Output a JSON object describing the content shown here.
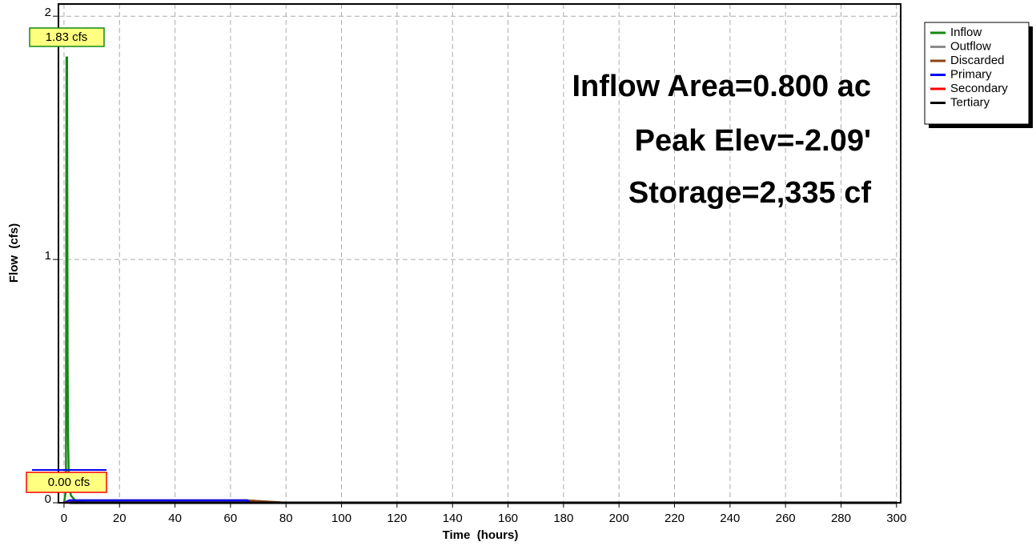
{
  "chart_data": {
    "type": "line",
    "xlabel": "Time  (hours)",
    "ylabel": "Flow  (cfs)",
    "xlim": [
      -2,
      301.5
    ],
    "ylim": [
      0,
      2.05
    ],
    "xticks": [
      0,
      20,
      40,
      60,
      80,
      100,
      120,
      140,
      160,
      180,
      200,
      220,
      240,
      260,
      280,
      300
    ],
    "yticks": [
      0,
      1,
      2
    ],
    "grid": true,
    "series": [
      {
        "name": "Inflow",
        "color": "#138a13",
        "x": [
          0,
          0.7,
          0.9,
          1.1,
          1.3,
          1.5,
          1.7,
          2,
          2.5,
          4,
          8
        ],
        "values": [
          0,
          0.05,
          1.83,
          1.83,
          0.6,
          0.25,
          0.12,
          0.06,
          0.03,
          0.01,
          0
        ]
      },
      {
        "name": "Outflow",
        "color": "#8c8c8c",
        "x": [
          0,
          1,
          2,
          66,
          76,
          80
        ],
        "values": [
          0,
          0.005,
          0.01,
          0.01,
          0.003,
          0
        ]
      },
      {
        "name": "Discarded",
        "color": "#8b4513",
        "x": [
          0,
          1,
          2,
          66,
          76,
          80
        ],
        "values": [
          0,
          0.005,
          0.01,
          0.01,
          0.003,
          0
        ]
      },
      {
        "name": "Primary",
        "color": "#0000ff",
        "x": [
          0,
          2,
          66,
          67
        ],
        "values": [
          0,
          0.01,
          0.01,
          0
        ]
      },
      {
        "name": "Secondary",
        "color": "#ff0000",
        "x": [
          0,
          300
        ],
        "values": [
          0,
          0
        ]
      },
      {
        "name": "Tertiary",
        "color": "#000000",
        "x": [
          2,
          300
        ],
        "values": [
          0,
          0
        ]
      }
    ],
    "annotations": [
      "Inflow Area=0.800 ac",
      "Peak Elev=-2.09'",
      "Storage=2,335 cf"
    ],
    "peak_labels": [
      "1.83 cfs",
      "0.00 cfs"
    ]
  }
}
